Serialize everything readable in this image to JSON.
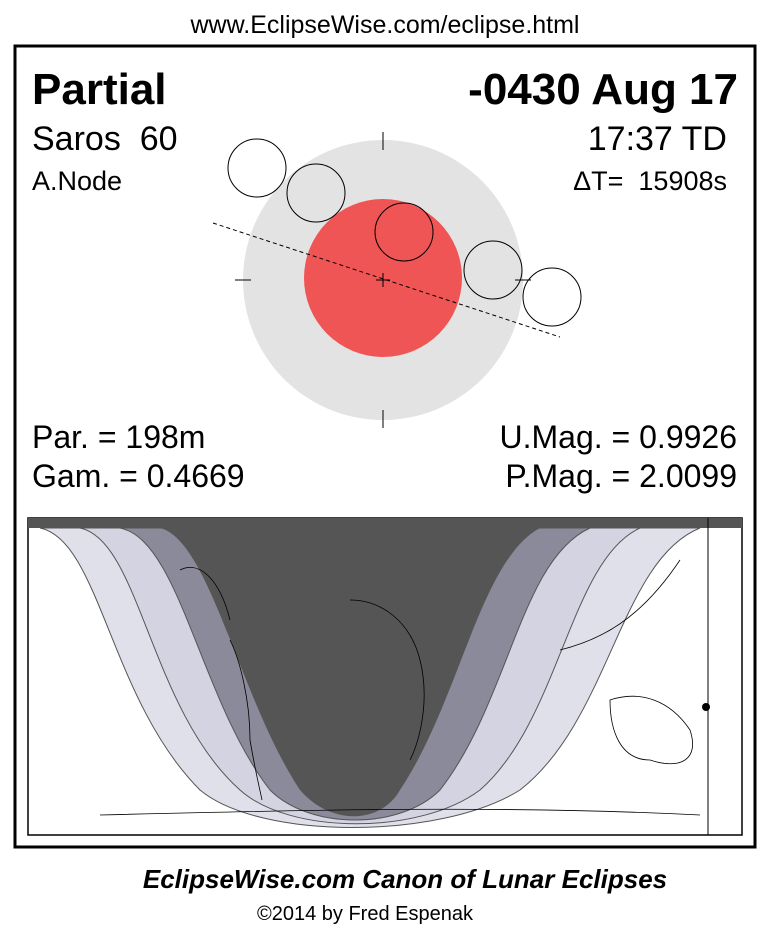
{
  "header": {
    "url": "www.EclipseWise.com/eclipse.html"
  },
  "eclipse": {
    "type": "Partial",
    "date": "-0430 Aug 17",
    "saros": "Saros  60",
    "time": "17:37 TD",
    "node": "A.Node",
    "delta_t": "ΔT=  15908s",
    "duration": "Par. = 198m",
    "umbral_magnitude": "U.Mag. = 0.9926",
    "gamma": "Gam. = 0.4669",
    "penumbral_magnitude": "P.Mag. = 2.0099"
  },
  "footer": {
    "title": "EclipseWise.com Canon of Lunar Eclipses",
    "copyright": "©2014 by Fred Espenak"
  }
}
